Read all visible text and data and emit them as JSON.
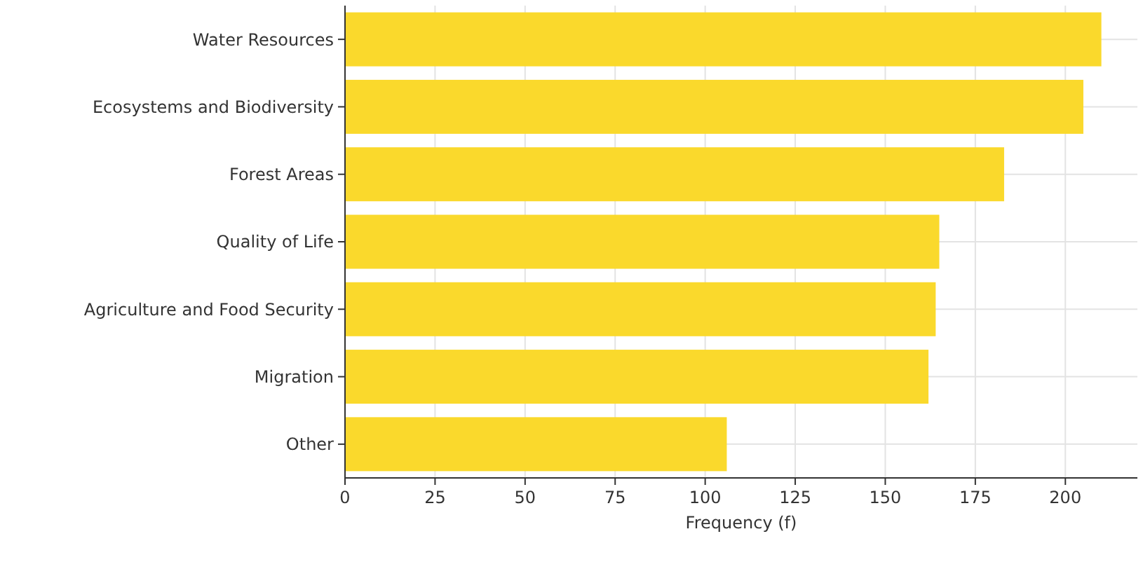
{
  "chart_data": {
    "type": "bar",
    "orientation": "horizontal",
    "xlabel": "Frequency (f)",
    "categories": [
      "Water Resources",
      "Ecosystems and Biodiversity",
      "Forest Areas",
      "Quality of Life",
      "Agriculture and Food Security",
      "Migration",
      "Other"
    ],
    "values": [
      210,
      205,
      183,
      165,
      164,
      162,
      106
    ],
    "color": "#fad92c",
    "xlim": [
      0,
      220
    ],
    "xticks": [
      0,
      25,
      50,
      75,
      100,
      125,
      150,
      175,
      200
    ],
    "grid": true
  }
}
